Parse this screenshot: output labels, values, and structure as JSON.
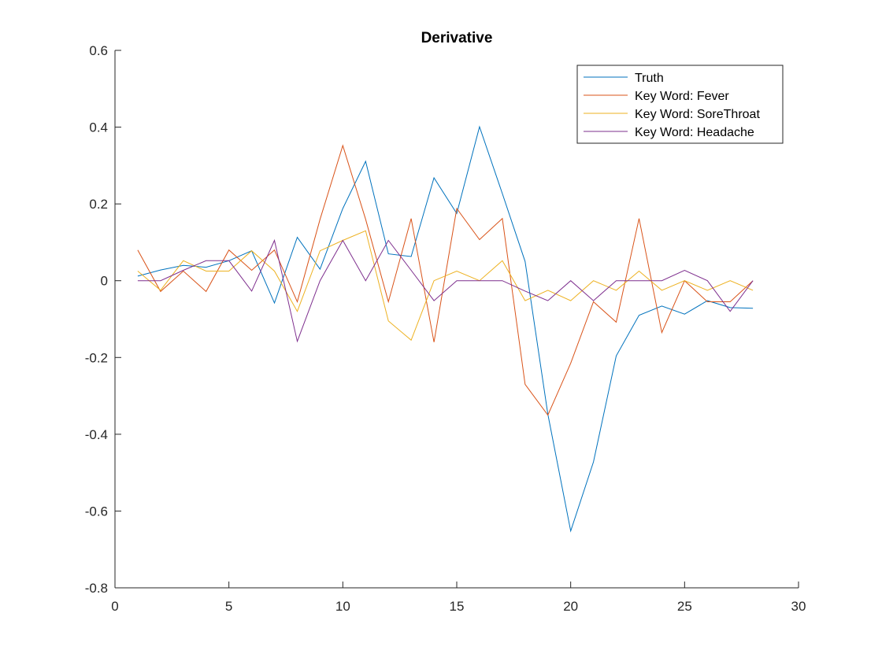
{
  "chart_data": {
    "type": "line",
    "title": "Derivative",
    "xlabel": "",
    "ylabel": "",
    "xlim": [
      0,
      30
    ],
    "ylim": [
      -0.8,
      0.6
    ],
    "xticks": [
      0,
      5,
      10,
      15,
      20,
      25,
      30
    ],
    "xtick_labels": [
      "0",
      "5",
      "10",
      "15",
      "20",
      "25",
      "30"
    ],
    "yticks": [
      -0.8,
      -0.6,
      -0.4,
      -0.2,
      0,
      0.2,
      0.4,
      0.6
    ],
    "ytick_labels": [
      "-0.8",
      "-0.6",
      "-0.4",
      "-0.2",
      "0",
      "0.2",
      "0.4",
      "0.6"
    ],
    "grid": false,
    "legend_position": "top-right",
    "x": [
      1,
      2,
      3,
      4,
      5,
      6,
      7,
      8,
      9,
      10,
      11,
      12,
      13,
      14,
      15,
      16,
      17,
      18,
      19,
      20,
      21,
      22,
      23,
      24,
      25,
      26,
      27,
      28
    ],
    "series": [
      {
        "name": "Truth",
        "color": "#0072BD",
        "values": [
          0.012,
          0.028,
          0.04,
          0.035,
          0.052,
          0.078,
          -0.058,
          0.113,
          0.03,
          0.188,
          0.311,
          0.07,
          0.063,
          0.268,
          0.175,
          0.401,
          0.227,
          0.05,
          -0.348,
          -0.652,
          -0.472,
          -0.196,
          -0.09,
          -0.066,
          -0.087,
          -0.052,
          -0.07,
          -0.072
        ]
      },
      {
        "name": "Key Word: Fever",
        "color": "#D95319",
        "values": [
          0.08,
          -0.028,
          0.025,
          -0.028,
          0.08,
          0.027,
          0.08,
          -0.055,
          0.16,
          0.352,
          0.16,
          -0.055,
          0.162,
          -0.16,
          0.188,
          0.107,
          0.162,
          -0.27,
          -0.35,
          -0.215,
          -0.055,
          -0.108,
          0.162,
          -0.135,
          0.0,
          -0.055,
          -0.055,
          0.0
        ]
      },
      {
        "name": "Key Word: SoreThroat",
        "color": "#EDB120",
        "values": [
          0.025,
          -0.025,
          0.052,
          0.025,
          0.025,
          0.078,
          0.025,
          -0.08,
          0.078,
          0.105,
          0.13,
          -0.105,
          -0.155,
          0.0,
          0.025,
          0.0,
          0.052,
          -0.052,
          -0.025,
          -0.052,
          0.0,
          -0.025,
          0.025,
          -0.025,
          0.0,
          -0.025,
          0.0,
          -0.025
        ]
      },
      {
        "name": "Key Word: Headache",
        "color": "#7E2F8E",
        "values": [
          0.0,
          0.0,
          0.027,
          0.052,
          0.052,
          -0.027,
          0.105,
          -0.158,
          0.0,
          0.105,
          0.0,
          0.105,
          0.027,
          -0.052,
          0.0,
          0.0,
          0.0,
          -0.027,
          -0.052,
          0.0,
          -0.052,
          0.0,
          0.0,
          0.0,
          0.027,
          0.0,
          -0.08,
          0.0
        ]
      }
    ]
  }
}
